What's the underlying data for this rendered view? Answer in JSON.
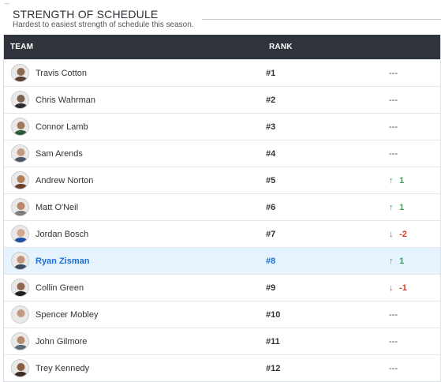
{
  "section": {
    "title": "STRENGTH OF SCHEDULE",
    "subtitle": "Hardest to easiest strength of schedule this season."
  },
  "table": {
    "headers": {
      "team": "TEAM",
      "rank": "RANK"
    },
    "rows": [
      {
        "team": "Travis Cotton",
        "rank": "#1",
        "change_dir": "none",
        "change": "---",
        "avatar_color": "#8b6a52",
        "jersey": "#5a3e2e"
      },
      {
        "team": "Chris Wahrman",
        "rank": "#2",
        "change_dir": "none",
        "change": "---",
        "avatar_color": "#7e6250",
        "jersey": "#2b2b2b"
      },
      {
        "team": "Connor Lamb",
        "rank": "#3",
        "change_dir": "none",
        "change": "---",
        "avatar_color": "#a07860",
        "jersey": "#2d5a3a"
      },
      {
        "team": "Sam Arends",
        "rank": "#4",
        "change_dir": "none",
        "change": "---",
        "avatar_color": "#c49a7e",
        "jersey": "#4a5568"
      },
      {
        "team": "Andrew Norton",
        "rank": "#5",
        "change_dir": "up",
        "change": "1",
        "avatar_color": "#b07d5a",
        "jersey": "#6b3f2a"
      },
      {
        "team": "Matt O'Neil",
        "rank": "#6",
        "change_dir": "up",
        "change": "1",
        "avatar_color": "#b8876a",
        "jersey": "#7a7a7a"
      },
      {
        "team": "Jordan Bosch",
        "rank": "#7",
        "change_dir": "down",
        "change": "-2",
        "avatar_color": "#d2a98c",
        "jersey": "#1e4fa0"
      },
      {
        "team": "Ryan Zisman",
        "rank": "#8",
        "change_dir": "up",
        "change": "1",
        "avatar_color": "#bf9478",
        "jersey": "#3a4a5e",
        "highlight": true
      },
      {
        "team": "Collin Green",
        "rank": "#9",
        "change_dir": "down",
        "change": "-1",
        "avatar_color": "#8e6850",
        "jersey": "#1f1f1f"
      },
      {
        "team": "Spencer Mobley",
        "rank": "#10",
        "change_dir": "none",
        "change": "---",
        "avatar_color": "#c09a82",
        "jersey": "#e8e8e8"
      },
      {
        "team": "John Gilmore",
        "rank": "#11",
        "change_dir": "none",
        "change": "---",
        "avatar_color": "#b58a6c",
        "jersey": "#5a6a7a"
      },
      {
        "team": "Trey Kennedy",
        "rank": "#12",
        "change_dir": "none",
        "change": "---",
        "avatar_color": "#8a5e42",
        "jersey": "#3b2a20"
      }
    ]
  },
  "arrows": {
    "up": "↑",
    "down": "↓"
  }
}
